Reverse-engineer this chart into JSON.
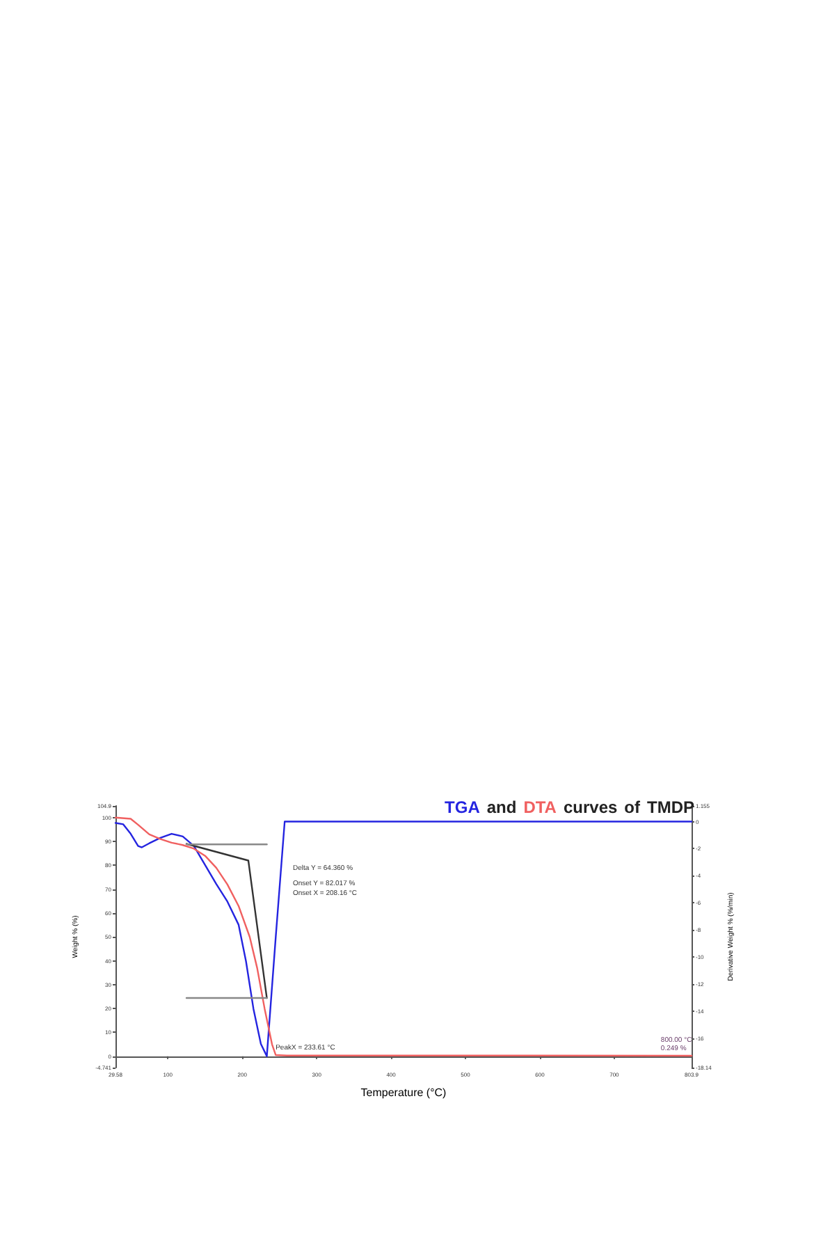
{
  "chart_data": {
    "type": "line",
    "title": "TGA and DTA curves of TMDP",
    "xlabel": "Temperature (°C)",
    "ylabel": "Weight % (%)",
    "y2label": "Derivative Weight % (%/min)",
    "annotations": [
      "Delta Y = 64.360 %",
      "Onset Y = 82.017 %",
      "Onset X = 208.16 °C",
      {
        "text": "PeakX = 233.61 °C",
        "x": 233.61,
        "y": 0
      },
      {
        "text": "800.00 °C\n0.249 %",
        "x": 800,
        "y": 0.249
      }
    ],
    "xlim": [
      29.58,
      803.9
    ],
    "xticks": [
      29.58,
      100,
      200,
      300,
      400,
      500,
      600,
      700,
      803.9
    ],
    "ylim": [
      -4.741,
      104.9
    ],
    "yticks": [
      -4.741,
      0,
      10,
      20,
      30,
      40,
      50,
      60,
      70,
      80,
      90,
      100,
      104.9
    ],
    "y2lim": [
      -18.14,
      1.155
    ],
    "y2ticks": [
      -18.14,
      -16,
      -14,
      -12,
      -10,
      -8,
      -6,
      -4,
      -2,
      0,
      1.155
    ],
    "grid": false,
    "marker": "none",
    "line_style": "solid",
    "series": [
      {
        "color": "#2424e0",
        "axis": "y2",
        "x": [
          29.58,
          40,
          50,
          60,
          65,
          75,
          90,
          105,
          120,
          135,
          150,
          165,
          180,
          195,
          205,
          215,
          225,
          233,
          245,
          257,
          300,
          803.9
        ],
        "values": [
          -0.1,
          -0.2,
          -0.9,
          -1.8,
          -1.9,
          -1.6,
          -1.2,
          -0.9,
          -1.1,
          -1.8,
          -3.2,
          -4.6,
          -5.9,
          -7.6,
          -10.3,
          -13.8,
          -16.4,
          -17.3,
          -8.5,
          0,
          0,
          0
        ]
      },
      {
        "color": "#f06060",
        "x": [
          29.58,
          50,
          60,
          75,
          90,
          105,
          120,
          135,
          150,
          165,
          180,
          195,
          210,
          220,
          230,
          240,
          245,
          260,
          500,
          803.9
        ],
        "values": [
          100,
          99.5,
          97,
          93,
          91,
          89.5,
          88.5,
          87,
          84,
          79,
          72,
          63,
          50,
          37,
          20,
          5,
          0.5,
          0.3,
          0.3,
          0.2
        ]
      },
      {
        "color": "#333333",
        "x": [
          125,
          208.16,
          233
        ],
        "values": [
          89,
          82,
          24.4
        ]
      },
      {
        "color": "#888888",
        "x": [
          125,
          233
        ],
        "values": [
          88.8,
          88.8
        ]
      },
      {
        "color": "#888888",
        "x": [
          125,
          233
        ],
        "values": [
          24.4,
          24.4
        ]
      }
    ]
  }
}
